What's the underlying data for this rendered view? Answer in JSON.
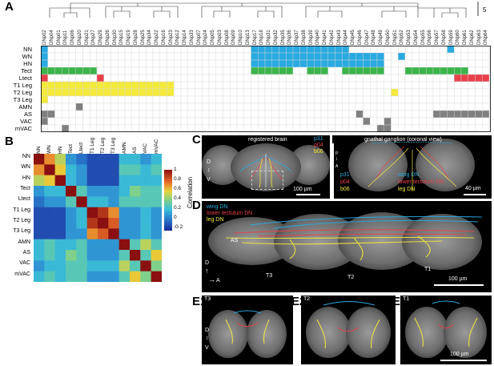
{
  "panel_labels": {
    "a": "A",
    "b": "B",
    "c": "C",
    "d": "D",
    "e1": "E1",
    "e2": "E2",
    "e3": "E3",
    "f": "F"
  },
  "panelA": {
    "scale_label": "5",
    "rows": [
      "NN",
      "WN",
      "HN",
      "Tect",
      "Ltect",
      "T1 Leg",
      "T2 Leg",
      "T3 Leg",
      "AMN",
      "AS",
      "VAC",
      "mVAC"
    ],
    "columns": [
      "DNp02",
      "DNp04",
      "DNp01",
      "DNp11",
      "DNp06",
      "DNp20",
      "DNp21",
      "DNp27",
      "DNp29",
      "DNp26",
      "DNp30",
      "DNp15",
      "DNp19",
      "DNp28",
      "DNp25",
      "DNp34",
      "DNp22",
      "DNp16",
      "DNp23",
      "DNp12",
      "DNp14",
      "DNp33",
      "DNp07",
      "DNp24",
      "DNp05",
      "DNp03",
      "DNp08",
      "DNp09",
      "DNp10",
      "DNp13",
      "DNp17",
      "DNp18",
      "DNp31",
      "DNp32",
      "DNp35",
      "DNp36",
      "DNp37",
      "DNp38",
      "DNp39",
      "DNp40",
      "DNp41",
      "DNp42",
      "DNp43",
      "DNp44",
      "DNp45",
      "DNp46",
      "DNp47",
      "DNp48",
      "DNp49",
      "DNp50",
      "DNp51",
      "DNp52",
      "DNp53",
      "DNp54",
      "DNp55",
      "DNp56",
      "DNp57",
      "DNp58",
      "DNp59",
      "DNp60",
      "DNp61",
      "DNp62",
      "DNp63",
      "DNp64"
    ],
    "row_colors": {
      "NN": "#29aae1",
      "WN": "#29aae1",
      "HN": "#29aae1",
      "Tect": "#3bb54a",
      "Ltect": "#e8414a",
      "T1 Leg": "#f4ea3b",
      "T2 Leg": "#f4ea3b",
      "T3 Leg": "#f4ea3b",
      "AMN": "#808080",
      "AS": "#808080",
      "VAC": "#808080",
      "mVAC": "#808080"
    }
  },
  "panelB": {
    "labels": [
      "NN",
      "WN",
      "HN",
      "Tect",
      "Ltect",
      "T1 Leg",
      "T2 Leg",
      "T3 Leg",
      "AMN",
      "AS",
      "VAC",
      "mVAC"
    ],
    "colorbar_ticks": [
      "1",
      "0.8",
      "0.6",
      "0.4",
      "0.2",
      "0",
      "-0.2"
    ],
    "colorbar_title": "Correlation"
  },
  "panelC": {
    "title": "registered brain",
    "legend": [
      "p31",
      "p04",
      "b06"
    ],
    "legend_colors": [
      "#29aae1",
      "#e8414a",
      "#f4ea3b"
    ],
    "scale": "100 µm",
    "axis_top": "D",
    "axis_bottom": "V"
  },
  "panelF": {
    "title": "gnathal ganglion (coronal view)",
    "legend": [
      "p31",
      "p04",
      "b06"
    ],
    "legend_colors": [
      "#29aae1",
      "#e8414a",
      "#f4ea3b"
    ],
    "legend2": [
      "wing DN",
      "lower tectulum DN",
      "leg DN"
    ],
    "scale": "40 µm",
    "axis": [
      "P",
      "A"
    ]
  },
  "panelD": {
    "legend": [
      "wing DN",
      "lower tectulum DN",
      "leg DN"
    ],
    "legend_colors": [
      "#29aae1",
      "#e8414a",
      "#f4ea3b"
    ],
    "labels": [
      "AS",
      "T3",
      "T2",
      "T1"
    ],
    "scale": "100 µm",
    "axis_v": "D",
    "axis_h": "A"
  },
  "panelE": {
    "labels": [
      "T3",
      "T2",
      "T1"
    ],
    "scale": "100 µm",
    "axis_top": "D",
    "axis_bottom": "V"
  }
}
